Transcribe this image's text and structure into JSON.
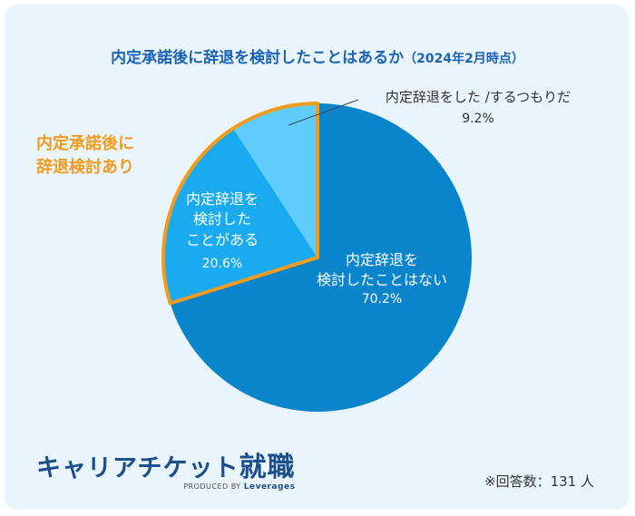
{
  "title": "内定承諾後に辞退を検討したことはあるか",
  "subtitle": "（2024年2月時点）",
  "group_label": "内定承諾後に辞退検討あり",
  "group_label_lines": [
    "内定承諾後に",
    "辞退検討あり"
  ],
  "chart_data": {
    "type": "pie",
    "title": "内定承諾後に辞退を検討したことはあるか（2024年2月時点）",
    "slices": [
      {
        "label": "内定辞退を検討したことはない",
        "lines": [
          "内定辞退を",
          "検討したことはない"
        ],
        "value": 70.2,
        "value_label": "70.2%",
        "color": "#0a85cc"
      },
      {
        "label": "内定辞退を検討したことがある",
        "lines": [
          "内定辞退を",
          "検討した",
          "ことがある"
        ],
        "value": 20.6,
        "value_label": "20.6%",
        "color": "#1aaaf0"
      },
      {
        "label": "内定辞退をした /するつもりだ",
        "lines": [
          "内定辞退をした /するつもりだ"
        ],
        "value": 9.2,
        "value_label": "9.2%",
        "color": "#5fccfb"
      }
    ],
    "highlight_color": "#f39c1b",
    "sample_note": "※回答数：131 人"
  },
  "logo": {
    "name_kana": "キャリアチケット",
    "name_kanji": "就職",
    "produced_by": "PRODUCED BY",
    "brand": "Leverages"
  },
  "colors": {
    "title": "#1b63b5",
    "background": "#eaf4fd",
    "logo": "#1a4f8c"
  }
}
